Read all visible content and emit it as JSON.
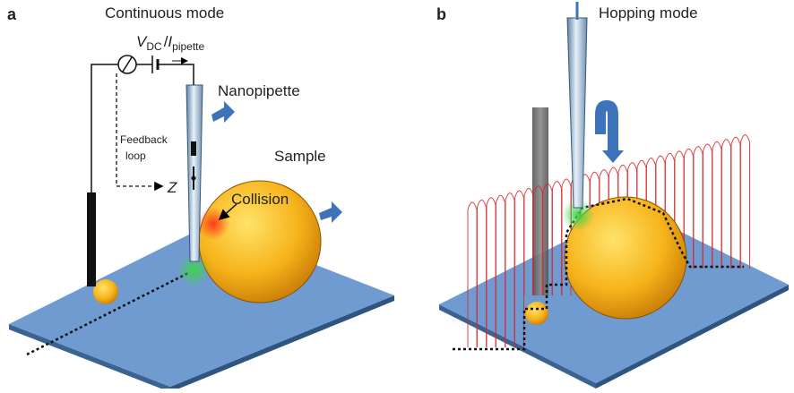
{
  "panels": [
    {
      "label": "a",
      "title": "Continuous mode",
      "formula": {
        "v_symbol": "V",
        "v_subscript": "DC",
        "separator": "/",
        "i_symbol": "I",
        "i_subscript": "pipette"
      },
      "annotations": {
        "nanopipette": "Nanopipette",
        "sample": "Sample",
        "feedback": [
          "Feedback",
          "loop"
        ],
        "z": "Z",
        "collision": "Collision"
      }
    },
    {
      "label": "b",
      "title": "Hopping mode"
    }
  ]
}
